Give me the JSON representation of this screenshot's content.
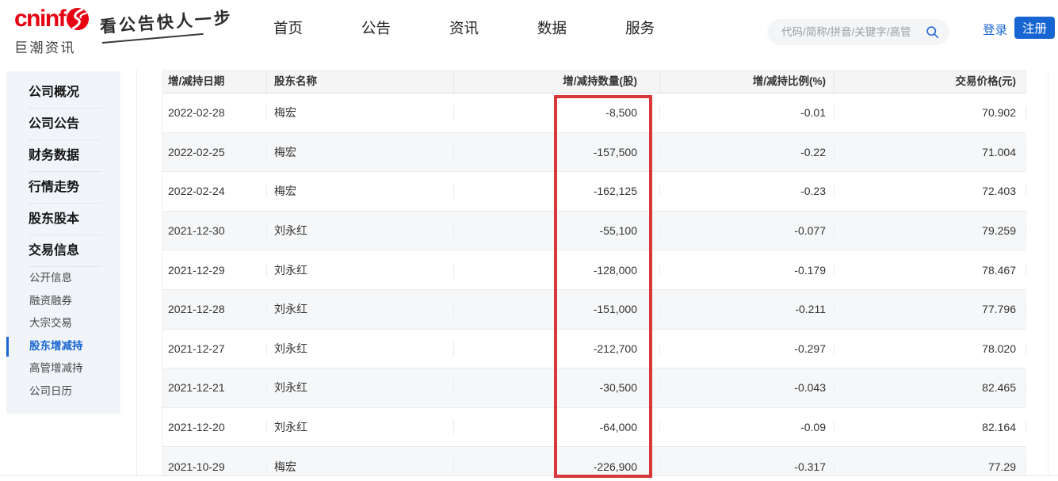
{
  "brand": {
    "logo_text": "cninf",
    "logo_subtext": "巨潮资讯",
    "tagline": "看公告快人一步"
  },
  "nav": {
    "items": [
      {
        "id": "home",
        "label": "首页"
      },
      {
        "id": "announcements",
        "label": "公告"
      },
      {
        "id": "news",
        "label": "资讯"
      },
      {
        "id": "data",
        "label": "数据"
      },
      {
        "id": "services",
        "label": "服务"
      }
    ]
  },
  "search": {
    "placeholder": "代码/简称/拼音/关键字/高管",
    "value": ""
  },
  "auth": {
    "login_label": "登录",
    "register_label": "注册"
  },
  "sidebar": {
    "main_items": [
      {
        "id": "company-overview",
        "label": "公司概况"
      },
      {
        "id": "company-announcements",
        "label": "公司公告"
      },
      {
        "id": "financial-data",
        "label": "财务数据"
      },
      {
        "id": "market-trends",
        "label": "行情走势"
      },
      {
        "id": "shareholders-equity",
        "label": "股东股本"
      },
      {
        "id": "trading-info",
        "label": "交易信息"
      }
    ],
    "sub_items": [
      {
        "id": "public-info",
        "label": "公开信息",
        "active": false
      },
      {
        "id": "margin-trading",
        "label": "融资融券",
        "active": false
      },
      {
        "id": "block-trades",
        "label": "大宗交易",
        "active": false
      },
      {
        "id": "shareholder-changes",
        "label": "股东增减持",
        "active": true
      },
      {
        "id": "executive-changes",
        "label": "高管增减持",
        "active": false
      },
      {
        "id": "company-calendar",
        "label": "公司日历",
        "active": false
      }
    ]
  },
  "table": {
    "columns": [
      {
        "id": "change-date",
        "label": "增/减持日期",
        "align": "left"
      },
      {
        "id": "shareholder-name",
        "label": "股东名称",
        "align": "left"
      },
      {
        "id": "change-quantity",
        "label": "增/减持数量(股)",
        "align": "right"
      },
      {
        "id": "change-ratio",
        "label": "增/减持比例(%)",
        "align": "right"
      },
      {
        "id": "trade-price",
        "label": "交易价格(元)",
        "align": "right"
      }
    ],
    "rows": [
      [
        "2022-02-28",
        "梅宏",
        "-8,500",
        "-0.01",
        "70.902"
      ],
      [
        "2022-02-25",
        "梅宏",
        "-157,500",
        "-0.22",
        "71.004"
      ],
      [
        "2022-02-24",
        "梅宏",
        "-162,125",
        "-0.23",
        "72.403"
      ],
      [
        "2021-12-30",
        "刘永红",
        "-55,100",
        "-0.077",
        "79.259"
      ],
      [
        "2021-12-29",
        "刘永红",
        "-128,000",
        "-0.179",
        "78.467"
      ],
      [
        "2021-12-28",
        "刘永红",
        "-151,000",
        "-0.211",
        "77.796"
      ],
      [
        "2021-12-27",
        "刘永红",
        "-212,700",
        "-0.297",
        "78.020"
      ],
      [
        "2021-12-21",
        "刘永红",
        "-30,500",
        "-0.043",
        "82.465"
      ],
      [
        "2021-12-20",
        "刘永红",
        "-64,000",
        "-0.09",
        "82.164"
      ],
      [
        "2021-10-29",
        "梅宏",
        "-226,900",
        "-0.317",
        "77.29"
      ]
    ]
  },
  "highlight": {
    "column": "change-quantity",
    "color": "#d9383a"
  },
  "colors": {
    "brand_red": "#e60012",
    "accent_blue": "#1765d2",
    "highlight_red": "#d9383a"
  }
}
